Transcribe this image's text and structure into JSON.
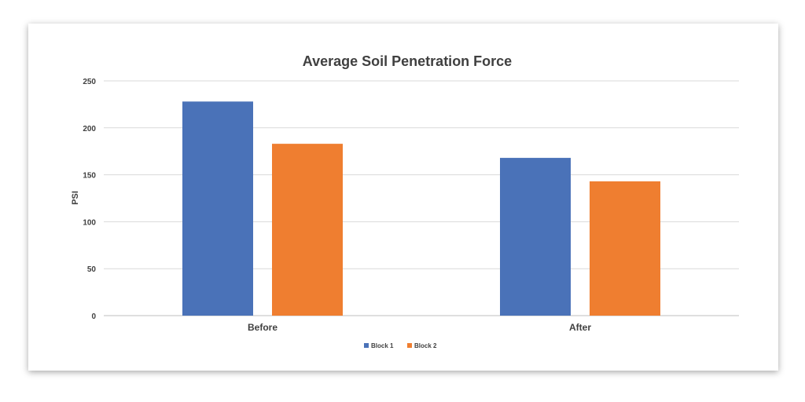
{
  "chart_data": {
    "type": "bar",
    "title": "Average Soil Penetration Force",
    "xlabel": "",
    "ylabel": "PSI",
    "categories": [
      "Before",
      "After"
    ],
    "series": [
      {
        "name": "Block 1",
        "values": [
          228,
          168
        ],
        "color": "#4a72b8"
      },
      {
        "name": "Block 2",
        "values": [
          183,
          143
        ],
        "color": "#ef7e30"
      }
    ],
    "ylim": [
      0,
      250
    ],
    "yticks": [
      0,
      50,
      100,
      150,
      200,
      250
    ],
    "grid": true,
    "legend_position": "bottom"
  }
}
